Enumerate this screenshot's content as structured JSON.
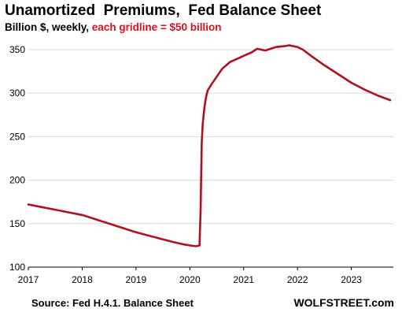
{
  "header": {
    "title": "Unamortized  Premiums,  Fed Balance Sheet",
    "subtitle_prefix": "Billion $, weekly, ",
    "subtitle_highlight": "each gridline = $50 billion"
  },
  "footer": {
    "source": "Source: Fed H.4.1. Balance Sheet",
    "brand": "WOLFSTREET.com"
  },
  "colors": {
    "line": "#b01020",
    "highlight": "#e0101e",
    "grid": "#d9d9d9",
    "axis": "#000000"
  },
  "chart_data": {
    "type": "line",
    "title": "Unamortized  Premiums,  Fed Balance Sheet",
    "xlabel": "",
    "ylabel": "",
    "xlim": [
      2017.0,
      2023.78
    ],
    "ylim": [
      100,
      360
    ],
    "grid": true,
    "gridline_step": 50,
    "x_ticks": [
      2017,
      2018,
      2019,
      2020,
      2021,
      2022,
      2023
    ],
    "y_ticks": [
      100,
      150,
      200,
      250,
      300,
      350
    ],
    "series": [
      {
        "name": "",
        "x": [
          2017.0,
          2017.25,
          2017.5,
          2017.75,
          2018.0,
          2018.25,
          2018.5,
          2018.75,
          2019.0,
          2019.25,
          2019.5,
          2019.75,
          2019.9,
          2020.0,
          2020.12,
          2020.18,
          2020.2,
          2020.22,
          2020.24,
          2020.27,
          2020.3,
          2020.33,
          2020.4,
          2020.5,
          2020.6,
          2020.75,
          2020.9,
          2021.0,
          2021.15,
          2021.25,
          2021.4,
          2021.5,
          2021.6,
          2021.75,
          2021.85,
          2022.0,
          2022.1,
          2022.25,
          2022.5,
          2022.75,
          2023.0,
          2023.25,
          2023.5,
          2023.72
        ],
        "y": [
          172,
          169,
          166,
          163,
          160,
          155,
          150,
          145,
          140,
          136,
          132,
          128,
          126,
          125,
          124,
          125,
          165,
          242,
          265,
          283,
          295,
          303,
          310,
          319,
          328,
          336,
          340,
          343,
          347,
          351,
          349,
          351,
          353,
          354,
          355,
          353,
          350,
          343,
          332,
          322,
          312,
          304,
          297,
          292
        ]
      }
    ]
  }
}
